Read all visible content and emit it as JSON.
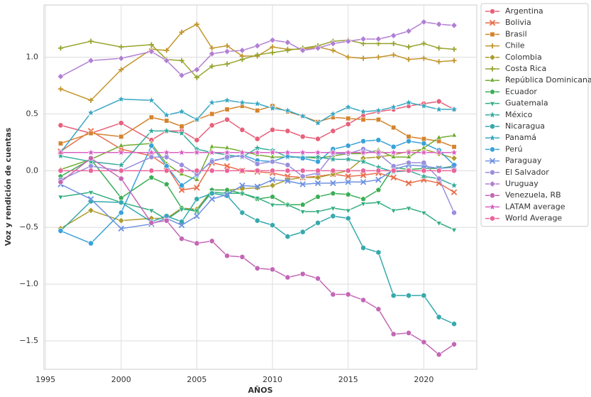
{
  "chart_data": {
    "type": "line",
    "xlabel": "AÑOS",
    "ylabel": "Voz y rendición de cuentas",
    "x": [
      1996,
      1998,
      2000,
      2002,
      2003,
      2004,
      2005,
      2006,
      2007,
      2008,
      2009,
      2010,
      2011,
      2012,
      2013,
      2014,
      2015,
      2016,
      2017,
      2018,
      2019,
      2020,
      2021,
      2022
    ],
    "xlim": [
      1994.9,
      2023.5
    ],
    "xticks": [
      1995,
      2000,
      2005,
      2010,
      2015,
      2020
    ],
    "ylim": [
      -1.75,
      1.46
    ],
    "yticks": [
      {
        "value": -1.5,
        "label": "−1.5"
      },
      {
        "value": -1,
        "label": "−1.0"
      },
      {
        "value": -0.5,
        "label": "−0.5"
      },
      {
        "value": 0,
        "label": "0.0"
      },
      0.5,
      {
        "value": 1,
        "label": "1.0"
      }
    ],
    "grid": true,
    "legend": "outside-upper-right",
    "series": [
      {
        "name": "Argentina",
        "color": "#e8607a",
        "marker": "circle",
        "values": [
          0.4,
          0.33,
          0.42,
          0.27,
          0.35,
          0.35,
          0.27,
          0.4,
          0.45,
          0.36,
          0.28,
          0.36,
          0.35,
          0.3,
          0.28,
          0.35,
          0.41,
          0.49,
          0.52,
          0.54,
          0.57,
          0.59,
          0.61,
          0.54
        ]
      },
      {
        "name": "Bolivia",
        "color": "#e86d4a",
        "marker": "x",
        "values": [
          0.17,
          0.35,
          0.19,
          0.13,
          0.04,
          -0.17,
          -0.15,
          0.07,
          0.04,
          0.0,
          -0.01,
          -0.02,
          -0.05,
          -0.06,
          -0.05,
          -0.03,
          -0.05,
          -0.04,
          -0.02,
          -0.06,
          -0.11,
          -0.08,
          -0.11,
          -0.19
        ]
      },
      {
        "name": "Brasil",
        "color": "#d4832e",
        "marker": "square",
        "values": [
          0.24,
          0.33,
          0.3,
          0.47,
          0.44,
          0.39,
          0.45,
          0.5,
          0.54,
          0.57,
          0.53,
          0.57,
          0.52,
          0.48,
          0.43,
          0.47,
          0.46,
          0.45,
          0.45,
          0.38,
          0.3,
          0.28,
          0.26,
          0.21
        ]
      },
      {
        "name": "Chile",
        "color": "#c3962e",
        "marker": "plus",
        "values": [
          0.72,
          0.62,
          0.89,
          1.07,
          1.06,
          1.22,
          1.29,
          1.08,
          1.1,
          1.01,
          1.01,
          1.09,
          1.07,
          1.07,
          1.09,
          1.06,
          1.0,
          0.99,
          1.0,
          1.02,
          0.98,
          0.99,
          0.96,
          0.97
        ]
      },
      {
        "name": "Colombia",
        "color": "#ad9c2e",
        "marker": "diamond",
        "values": [
          -0.51,
          -0.35,
          -0.44,
          -0.42,
          -0.42,
          -0.33,
          -0.34,
          -0.17,
          -0.17,
          -0.16,
          -0.15,
          -0.13,
          -0.08,
          -0.06,
          -0.06,
          -0.03,
          0.0,
          0.11,
          0.12,
          0.14,
          0.17,
          0.19,
          0.15,
          0.11
        ]
      },
      {
        "name": "Costa Rica",
        "color": "#97a42e",
        "marker": "plus",
        "values": [
          1.08,
          1.14,
          1.09,
          1.11,
          0.98,
          0.97,
          0.82,
          0.92,
          0.94,
          0.98,
          1.02,
          1.04,
          1.06,
          1.08,
          1.1,
          1.14,
          1.15,
          1.12,
          1.12,
          1.12,
          1.09,
          1.12,
          1.08,
          1.07
        ]
      },
      {
        "name": "República Dominicana",
        "color": "#72ab32",
        "marker": "triangle-up",
        "values": [
          0.01,
          0.1,
          0.22,
          0.24,
          0.06,
          -0.03,
          -0.08,
          0.21,
          0.2,
          0.17,
          0.14,
          0.12,
          0.12,
          0.12,
          0.11,
          0.13,
          0.15,
          0.15,
          0.18,
          0.12,
          0.12,
          0.2,
          0.29,
          0.31
        ]
      },
      {
        "name": "Ecuador",
        "color": "#3aae55",
        "marker": "pentagon",
        "values": [
          -0.05,
          0.1,
          -0.24,
          -0.06,
          -0.12,
          -0.33,
          -0.36,
          -0.17,
          -0.17,
          -0.2,
          -0.25,
          -0.23,
          -0.3,
          -0.3,
          -0.23,
          -0.2,
          -0.21,
          -0.25,
          -0.17,
          0.03,
          0.01,
          0.02,
          0.02,
          0.04
        ]
      },
      {
        "name": "Guatemala",
        "color": "#33ae80",
        "marker": "triangle-down",
        "values": [
          -0.23,
          -0.19,
          -0.28,
          -0.35,
          -0.43,
          -0.34,
          -0.35,
          -0.19,
          -0.2,
          -0.2,
          -0.24,
          -0.3,
          -0.3,
          -0.36,
          -0.36,
          -0.33,
          -0.35,
          -0.29,
          -0.28,
          -0.35,
          -0.33,
          -0.37,
          -0.46,
          -0.52
        ]
      },
      {
        "name": "México",
        "color": "#35ac9d",
        "marker": "star",
        "values": [
          0.13,
          0.08,
          0.05,
          0.35,
          0.35,
          0.33,
          0.19,
          0.16,
          0.14,
          0.12,
          0.2,
          0.18,
          0.12,
          0.12,
          0.12,
          0.1,
          0.1,
          0.08,
          0.03,
          -0.01,
          0.0,
          -0.05,
          -0.07,
          -0.13
        ]
      },
      {
        "name": "Nicaragua",
        "color": "#36a9ad",
        "marker": "hexagon",
        "values": [
          -0.53,
          -0.27,
          -0.28,
          -0.45,
          -0.4,
          -0.45,
          -0.25,
          -0.2,
          -0.22,
          -0.37,
          -0.44,
          -0.48,
          -0.58,
          -0.54,
          -0.46,
          -0.4,
          -0.42,
          -0.68,
          -0.72,
          -1.1,
          -1.1,
          -1.1,
          -1.29,
          -1.35
        ]
      },
      {
        "name": "Panamá",
        "color": "#38a7c2",
        "marker": "star",
        "values": [
          0.16,
          0.51,
          0.63,
          0.62,
          0.49,
          0.52,
          0.45,
          0.6,
          0.62,
          0.6,
          0.59,
          0.55,
          0.53,
          0.48,
          0.42,
          0.5,
          0.56,
          0.52,
          0.53,
          0.56,
          0.6,
          0.57,
          0.54,
          0.54
        ]
      },
      {
        "name": "Perú",
        "color": "#3aa2d8",
        "marker": "circle",
        "values": [
          -0.53,
          -0.64,
          -0.37,
          0.22,
          0.04,
          -0.13,
          -0.04,
          0.09,
          0.11,
          0.14,
          0.09,
          0.08,
          0.13,
          0.11,
          0.08,
          0.19,
          0.22,
          0.26,
          0.27,
          0.21,
          0.26,
          0.24,
          0.18,
          0.05
        ]
      },
      {
        "name": "Paraguay",
        "color": "#6f93e0",
        "marker": "x",
        "values": [
          -0.12,
          -0.25,
          -0.51,
          -0.47,
          -0.42,
          -0.48,
          -0.4,
          -0.25,
          -0.21,
          -0.13,
          -0.14,
          -0.08,
          -0.09,
          -0.12,
          -0.11,
          -0.11,
          -0.1,
          -0.1,
          -0.08,
          0.01,
          0.05,
          0.04,
          0.02,
          0.03
        ]
      },
      {
        "name": "El Salvador",
        "color": "#9a8fdc",
        "marker": "circle",
        "values": [
          -0.08,
          0.04,
          0.0,
          0.12,
          0.12,
          0.05,
          -0.03,
          0.08,
          0.12,
          0.13,
          0.06,
          0.08,
          0.05,
          -0.05,
          -0.02,
          0.15,
          0.15,
          0.19,
          0.15,
          0.04,
          0.07,
          0.07,
          -0.07,
          -0.37
        ]
      },
      {
        "name": "Uruguay",
        "color": "#b27fd3",
        "marker": "diamond",
        "values": [
          0.83,
          0.97,
          0.99,
          1.05,
          0.97,
          0.84,
          0.89,
          1.03,
          1.05,
          1.06,
          1.1,
          1.15,
          1.13,
          1.06,
          1.08,
          1.12,
          1.14,
          1.16,
          1.16,
          1.19,
          1.23,
          1.31,
          1.29,
          1.28
        ]
      },
      {
        "name": "Venezuela, RB",
        "color": "#c466b5",
        "marker": "circle",
        "values": [
          -0.1,
          0.11,
          -0.07,
          -0.46,
          -0.44,
          -0.6,
          -0.64,
          -0.62,
          -0.75,
          -0.76,
          -0.86,
          -0.87,
          -0.94,
          -0.91,
          -0.95,
          -1.09,
          -1.09,
          -1.14,
          -1.22,
          -1.44,
          -1.43,
          -1.51,
          -1.62,
          -1.53
        ]
      },
      {
        "name": "LATAM average",
        "color": "#d960c2",
        "marker": "star",
        "values": [
          0.16,
          0.16,
          0.16,
          0.16,
          0.16,
          0.16,
          0.16,
          0.16,
          0.16,
          0.16,
          0.16,
          0.16,
          0.16,
          0.16,
          0.16,
          0.16,
          0.16,
          0.16,
          0.16,
          0.16,
          0.16,
          0.16,
          0.16,
          0.16
        ]
      },
      {
        "name": "World Average",
        "color": "#ea6499",
        "marker": "circle",
        "values": [
          0.0,
          0.0,
          0.0,
          0.0,
          0.0,
          0.0,
          0.0,
          0.0,
          0.0,
          0.0,
          0.0,
          0.0,
          0.0,
          0.0,
          0.0,
          0.0,
          0.0,
          0.0,
          0.0,
          0.0,
          0.0,
          0.0,
          0.0,
          0.0
        ]
      }
    ]
  }
}
